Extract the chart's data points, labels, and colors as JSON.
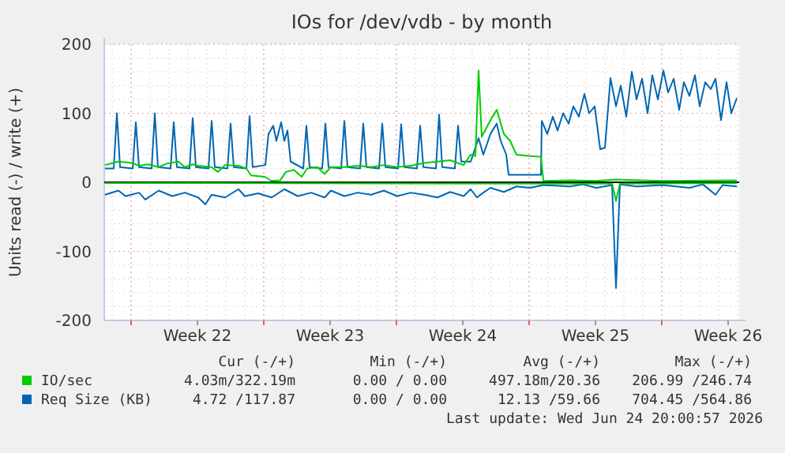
{
  "chart_data": {
    "type": "line",
    "title": "IOs for /dev/vdb - by month",
    "ylabel": "Units read (-) / write (+)",
    "xlim": [
      "2026-05-22T08:00",
      "2026-06-24T20:00"
    ],
    "xticks": [
      {
        "value": "2026-05-23T18:00",
        "label": null
      },
      {
        "value": "2026-05-27T06:00",
        "label": "Week 22"
      },
      {
        "value": "2026-05-30T18:00",
        "label": null
      },
      {
        "value": "2026-06-03T06:00",
        "label": "Week 23"
      },
      {
        "value": "2026-06-06T18:00",
        "label": null
      },
      {
        "value": "2026-06-10T06:00",
        "label": "Week 24"
      },
      {
        "value": "2026-06-13T18:00",
        "label": null
      },
      {
        "value": "2026-06-17T06:00",
        "label": "Week 25"
      },
      {
        "value": "2026-06-20T18:00",
        "label": null
      },
      {
        "value": "2026-06-24T06:00",
        "label": "Week 26"
      }
    ],
    "ylim": [
      -200,
      200
    ],
    "yticks": [
      -200,
      -100,
      0,
      100,
      200
    ],
    "grid": true,
    "legend": "bottom",
    "line_style": "solid",
    "marker": "none",
    "ref_lines": [
      {
        "axis": "y",
        "value": 0,
        "label": null,
        "color": "#000000"
      }
    ],
    "series": [
      {
        "name": "IO/sec",
        "color": "#00cc00",
        "x": [
          "2026-05-22T09:00",
          "2026-05-23T02:00",
          "2026-05-23T19:00",
          "2026-05-24T04:00",
          "2026-05-24T15:00",
          "2026-05-25T05:00",
          "2026-05-25T15:00",
          "2026-05-26T06:00",
          "2026-05-26T14:00",
          "2026-05-27T00:00",
          "2026-05-27T07:00",
          "2026-05-28T00:00",
          "2026-05-28T08:00",
          "2026-05-28T17:00",
          "2026-05-29T10:00",
          "2026-05-29T20:00",
          "2026-05-30T02:00",
          "2026-05-30T19:00",
          "2026-05-31T04:00",
          "2026-05-31T15:00",
          "2026-05-31T22:00",
          "2026-06-01T08:00",
          "2026-06-01T18:00",
          "2026-06-02T01:00",
          "2026-06-02T14:00",
          "2026-06-02T23:00",
          "2026-06-03T07:00",
          "2026-06-04T00:00",
          "2026-06-04T17:00",
          "2026-06-05T10:00",
          "2026-06-06T02:00",
          "2026-06-06T19:00",
          "2026-06-07T12:00",
          "2026-06-08T05:00",
          "2026-06-08T22:00",
          "2026-06-09T14:00",
          "2026-06-10T07:00",
          "2026-06-10T16:00",
          "2026-06-10T22:00",
          "2026-06-11T02:00",
          "2026-06-11T06:00",
          "2026-06-11T17:00",
          "2026-06-12T01:00",
          "2026-06-12T10:00",
          "2026-06-12T18:00",
          "2026-06-13T02:00",
          "2026-06-13T19:00",
          "2026-06-14T09:00",
          "2026-06-14T12:00",
          "2026-06-15T22:00",
          "2026-06-17T07:00",
          "2026-06-18T07:00",
          "2026-06-20T19:00",
          "2026-06-24T17:00"
        ],
        "values": [
          25,
          30,
          28,
          24,
          26,
          22,
          27,
          30,
          22,
          26,
          24,
          22,
          15,
          25,
          24,
          20,
          10,
          8,
          2,
          3,
          15,
          18,
          8,
          20,
          22,
          12,
          22,
          22,
          24,
          22,
          25,
          22,
          24,
          28,
          30,
          32,
          25,
          40,
          38,
          162,
          66,
          90,
          105,
          70,
          60,
          40,
          38,
          37,
          2,
          3,
          2,
          4,
          2,
          3
        ]
      },
      {
        "color": "#00cc00",
        "x": [
          "2026-05-22T09:00",
          "2026-06-18T03:00",
          "2026-06-18T08:00",
          "2026-06-18T13:00",
          "2026-06-24T17:00"
        ],
        "values": [
          -1,
          -2,
          -27,
          -2,
          -1
        ]
      },
      {
        "name": "Req Size (KB)",
        "color": "#0066b3",
        "x": [
          "2026-05-22T09:00",
          "2026-05-22T20:00",
          "2026-05-23T00:00",
          "2026-05-23T04:00",
          "2026-05-23T20:00",
          "2026-05-24T00:00",
          "2026-05-24T04:00",
          "2026-05-24T20:00",
          "2026-05-25T00:00",
          "2026-05-25T04:00",
          "2026-05-25T20:00",
          "2026-05-26T00:00",
          "2026-05-26T04:00",
          "2026-05-26T20:00",
          "2026-05-27T00:00",
          "2026-05-27T04:00",
          "2026-05-27T20:00",
          "2026-05-28T00:00",
          "2026-05-28T04:00",
          "2026-05-28T20:00",
          "2026-05-29T00:00",
          "2026-05-29T04:00",
          "2026-05-29T20:00",
          "2026-05-30T00:00",
          "2026-05-30T04:00",
          "2026-05-30T20:00",
          "2026-05-31T00:00",
          "2026-05-31T06:00",
          "2026-05-31T10:00",
          "2026-05-31T16:00",
          "2026-05-31T20:00",
          "2026-06-01T00:00",
          "2026-06-01T04:00",
          "2026-06-01T20:00",
          "2026-06-02T00:00",
          "2026-06-02T04:00",
          "2026-06-02T20:00",
          "2026-06-03T00:00",
          "2026-06-03T04:00",
          "2026-06-03T20:00",
          "2026-06-04T00:00",
          "2026-06-04T04:00",
          "2026-06-04T20:00",
          "2026-06-05T00:00",
          "2026-06-05T04:00",
          "2026-06-05T20:00",
          "2026-06-06T00:00",
          "2026-06-06T04:00",
          "2026-06-06T20:00",
          "2026-06-07T00:00",
          "2026-06-07T04:00",
          "2026-06-07T20:00",
          "2026-06-08T00:00",
          "2026-06-08T04:00",
          "2026-06-08T20:00",
          "2026-06-09T00:00",
          "2026-06-09T04:00",
          "2026-06-09T20:00",
          "2026-06-10T00:00",
          "2026-06-10T04:00",
          "2026-06-10T16:00",
          "2026-06-11T02:00",
          "2026-06-11T08:00",
          "2026-06-11T17:00",
          "2026-06-12T01:00",
          "2026-06-12T06:00",
          "2026-06-12T13:00",
          "2026-06-12T16:00",
          "2026-06-14T09:00",
          "2026-06-14T10:00",
          "2026-06-14T17:00",
          "2026-06-15T00:00",
          "2026-06-15T06:00",
          "2026-06-15T13:00",
          "2026-06-15T20:00",
          "2026-06-16T02:00",
          "2026-06-16T09:00",
          "2026-06-16T16:00",
          "2026-06-16T22:00",
          "2026-06-17T05:00",
          "2026-06-17T12:00",
          "2026-06-17T18:00",
          "2026-06-18T01:00",
          "2026-06-18T08:00",
          "2026-06-18T14:00",
          "2026-06-18T21:00",
          "2026-06-19T04:00",
          "2026-06-19T10:00",
          "2026-06-19T17:00",
          "2026-06-20T00:00",
          "2026-06-20T06:00",
          "2026-06-20T13:00",
          "2026-06-20T20:00",
          "2026-06-21T02:00",
          "2026-06-21T09:00",
          "2026-06-21T16:00",
          "2026-06-21T22:00",
          "2026-06-22T05:00",
          "2026-06-22T12:00",
          "2026-06-22T18:00",
          "2026-06-23T01:00",
          "2026-06-23T08:00",
          "2026-06-23T14:00",
          "2026-06-23T21:00",
          "2026-06-24T04:00",
          "2026-06-24T10:00",
          "2026-06-24T17:00"
        ],
        "values": [
          20,
          20,
          100,
          22,
          20,
          87,
          22,
          20,
          100,
          22,
          20,
          87,
          22,
          20,
          93,
          22,
          20,
          89,
          22,
          20,
          85,
          22,
          20,
          96,
          22,
          25,
          70,
          82,
          60,
          87,
          60,
          75,
          30,
          20,
          82,
          22,
          20,
          85,
          22,
          20,
          89,
          22,
          20,
          85,
          22,
          20,
          85,
          22,
          20,
          84,
          22,
          20,
          82,
          22,
          20,
          98,
          22,
          20,
          82,
          30,
          30,
          64,
          40,
          70,
          85,
          60,
          40,
          11,
          11,
          89,
          70,
          95,
          75,
          100,
          85,
          110,
          95,
          128,
          100,
          110,
          48,
          50,
          151,
          110,
          140,
          95,
          160,
          120,
          150,
          100,
          155,
          120,
          162,
          130,
          150,
          105,
          145,
          125,
          155,
          110,
          145,
          135,
          150,
          90,
          145,
          100,
          122
        ]
      },
      {
        "color": "#0066b3",
        "x": [
          "2026-05-22T09:00",
          "2026-05-23T02:00",
          "2026-05-23T11:00",
          "2026-05-24T04:00",
          "2026-05-24T12:00",
          "2026-05-25T05:00",
          "2026-05-25T22:00",
          "2026-05-26T14:00",
          "2026-05-27T07:00",
          "2026-05-27T16:00",
          "2026-05-28T00:00",
          "2026-05-28T17:00",
          "2026-05-29T10:00",
          "2026-05-29T18:00",
          "2026-05-30T11:00",
          "2026-05-31T04:00",
          "2026-05-31T20:00",
          "2026-06-01T13:00",
          "2026-06-02T06:00",
          "2026-06-02T23:00",
          "2026-06-03T07:00",
          "2026-06-04T00:00",
          "2026-06-04T17:00",
          "2026-06-05T10:00",
          "2026-06-06T02:00",
          "2026-06-06T19:00",
          "2026-06-07T12:00",
          "2026-06-08T05:00",
          "2026-06-08T22:00",
          "2026-06-09T14:00",
          "2026-06-10T07:00",
          "2026-06-10T16:00",
          "2026-06-11T00:00",
          "2026-06-11T08:00",
          "2026-06-11T17:00",
          "2026-06-12T10:00",
          "2026-06-13T02:00",
          "2026-06-13T19:00",
          "2026-06-14T12:00",
          "2026-06-15T22:00",
          "2026-06-16T14:00",
          "2026-06-17T07:00",
          "2026-06-18T03:00",
          "2026-06-18T08:00",
          "2026-06-18T13:00",
          "2026-06-19T10:00",
          "2026-06-20T19:00",
          "2026-06-22T05:00",
          "2026-06-22T22:00",
          "2026-06-23T14:00",
          "2026-06-23T23:00",
          "2026-06-24T17:00"
        ],
        "values": [
          -18,
          -12,
          -20,
          -15,
          -25,
          -12,
          -20,
          -15,
          -22,
          -32,
          -18,
          -22,
          -10,
          -20,
          -16,
          -22,
          -10,
          -20,
          -15,
          -22,
          -12,
          -20,
          -15,
          -18,
          -12,
          -20,
          -15,
          -18,
          -22,
          -14,
          -20,
          -10,
          -22,
          -15,
          -8,
          -14,
          -6,
          -8,
          -4,
          -6,
          -3,
          -8,
          -4,
          -153,
          -3,
          -6,
          -4,
          -8,
          -3,
          -18,
          -4,
          -6
        ]
      }
    ],
    "annotations": [
      "Cur (-/+)",
      "Min (-/+)",
      "Avg (-/+)",
      "Max (-/+)",
      "4.03m/322.19m",
      "0.00 / 0.00",
      "497.18m/20.36",
      "206.99 /246.74",
      "4.72 /117.87",
      "0.00 / 0.00",
      "12.13 /59.66",
      "704.45 /564.86",
      "Last update: Wed Jun 24 20:00:57 2026"
    ]
  }
}
